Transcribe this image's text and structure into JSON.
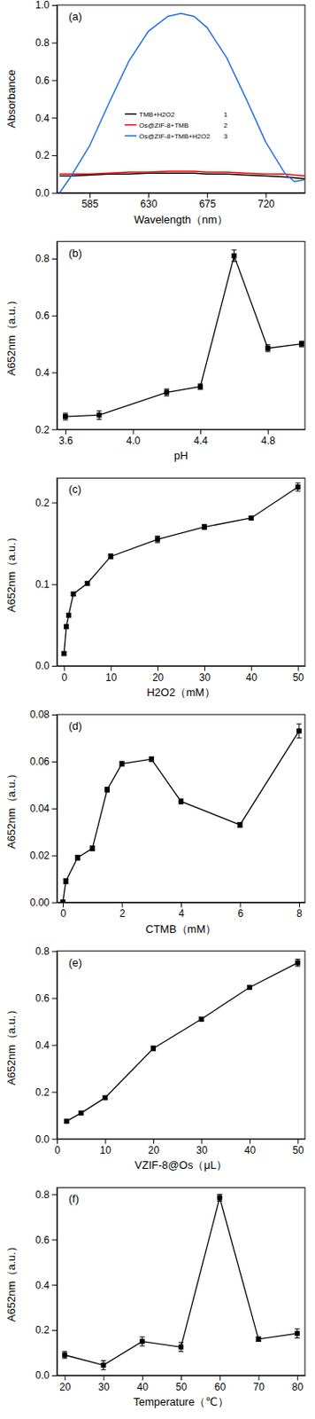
{
  "chart_data": [
    {
      "type": "line",
      "title": "(a)",
      "x_label": "Wavelength（nm）",
      "y_label": "Absorbance",
      "x": [
        562,
        570,
        585,
        600,
        615,
        630,
        645,
        655,
        665,
        675,
        690,
        705,
        720,
        735,
        742,
        750
      ],
      "series": [
        {
          "name": "TMB+H2O2",
          "color": "#000000",
          "values": [
            0.09,
            0.09,
            0.095,
            0.1,
            0.1,
            0.105,
            0.105,
            0.105,
            0.105,
            0.1,
            0.1,
            0.095,
            0.09,
            0.085,
            0.08,
            0.075
          ]
        },
        {
          "name": "Os@ZIF-8+TMB",
          "color": "#ff0000",
          "values": [
            0.1,
            0.1,
            0.1,
            0.105,
            0.11,
            0.11,
            0.115,
            0.115,
            0.115,
            0.11,
            0.11,
            0.105,
            0.1,
            0.1,
            0.095,
            0.09
          ]
        },
        {
          "name": "Os@ZIF-8+TMB+H2O2",
          "color": "#1f6fe0",
          "values": [
            0.0,
            0.08,
            0.25,
            0.48,
            0.7,
            0.86,
            0.94,
            0.955,
            0.94,
            0.88,
            0.72,
            0.5,
            0.27,
            0.1,
            0.06,
            0.07
          ]
        }
      ],
      "annotations": [
        "1",
        "2",
        "3"
      ],
      "legend": "center",
      "xlim": [
        560,
        750
      ],
      "xticks": [
        585,
        630,
        675,
        720
      ],
      "ylim": [
        0,
        1.0
      ],
      "yticks": [
        {
          "value": 0,
          "label": "0.0"
        },
        0.2,
        0.4,
        0.6,
        0.8,
        {
          "value": 1.0,
          "label": "1.0"
        }
      ]
    },
    {
      "type": "line",
      "title": "(b)",
      "x_label": "pH",
      "y_label": "A652nm（a.u.）",
      "color": "#000000",
      "marker": "square",
      "x": [
        3.6,
        3.8,
        4.2,
        4.4,
        4.6,
        4.8,
        5.0
      ],
      "values": [
        0.245,
        0.25,
        0.33,
        0.35,
        0.81,
        0.485,
        0.5
      ],
      "errors": [
        0.012,
        0.015,
        0.012,
        0.01,
        0.02,
        0.012,
        0.01
      ],
      "xlim": [
        3.55,
        5.02
      ],
      "xticks": [
        3.6,
        {
          "value": 4.0,
          "label": "4.0"
        },
        4.4,
        4.8
      ],
      "ylim": [
        0.2,
        0.86
      ],
      "yticks": [
        0.2,
        0.4,
        0.6,
        0.8
      ]
    },
    {
      "type": "line",
      "title": "(c)",
      "x_label": "H2O2（mM）",
      "y_label": "A652nm（a.u.）",
      "color": "#000000",
      "marker": "square",
      "x": [
        0,
        0.5,
        1,
        2,
        5,
        10,
        20,
        30,
        40,
        50
      ],
      "values": [
        0.015,
        0.048,
        0.062,
        0.088,
        0.101,
        0.134,
        0.155,
        0.17,
        0.181,
        0.219
      ],
      "errors": [
        0.002,
        0.002,
        0.002,
        0.002,
        0.002,
        0.003,
        0.004,
        0.003,
        0.002,
        0.005
      ],
      "xlim": [
        -1.5,
        51.5
      ],
      "xticks": [
        0,
        10,
        20,
        30,
        40,
        50
      ],
      "ylim": [
        0,
        0.23
      ],
      "yticks": [
        {
          "value": 0,
          "label": "0.0"
        },
        0.1,
        0.2
      ]
    },
    {
      "type": "line",
      "title": "(d)",
      "x_label": "CTMB（mM）",
      "y_label": "A652nm（a.u.）",
      "color": "#000000",
      "marker": "square",
      "x": [
        0,
        0.1,
        0.5,
        1,
        1.5,
        2,
        3,
        4,
        6,
        8
      ],
      "values": [
        0.0,
        0.009,
        0.019,
        0.023,
        0.048,
        0.059,
        0.061,
        0.043,
        0.033,
        0.073
      ],
      "errors": [
        0.001,
        0.001,
        0.001,
        0.001,
        0.001,
        0.001,
        0.001,
        0.001,
        0.001,
        0.003
      ],
      "xlim": [
        -0.2,
        8.2
      ],
      "xticks": [
        0,
        2,
        4,
        6,
        8
      ],
      "ylim": [
        0,
        0.08
      ],
      "yticks": [
        {
          "value": 0,
          "label": "0.00"
        },
        {
          "value": 0.02,
          "label": "0.02"
        },
        {
          "value": 0.04,
          "label": "0.04"
        },
        {
          "value": 0.06,
          "label": "0.06"
        },
        {
          "value": 0.08,
          "label": "0.08"
        }
      ]
    },
    {
      "type": "line",
      "title": "(e)",
      "x_label": "VZIF-8@Os（μL）",
      "y_label": "A652nm（a.u.）",
      "color": "#000000",
      "marker": "square",
      "x": [
        2,
        5,
        10,
        20,
        30,
        40,
        50
      ],
      "values": [
        0.075,
        0.11,
        0.175,
        0.385,
        0.51,
        0.645,
        0.75
      ],
      "errors": [
        0.005,
        0.006,
        0.006,
        0.01,
        0.008,
        0.008,
        0.015
      ],
      "xlim": [
        0,
        51.5
      ],
      "xticks": [
        0,
        10,
        20,
        30,
        40,
        50
      ],
      "ylim": [
        0,
        0.8
      ],
      "yticks": [
        {
          "value": 0,
          "label": "0.0"
        },
        0.2,
        0.4,
        0.6,
        0.8
      ]
    },
    {
      "type": "line",
      "title": "(f)",
      "x_label": "Temperature（℃）",
      "y_label": "A652nm（a.u.）",
      "color": "#000000",
      "marker": "square",
      "x": [
        20,
        30,
        40,
        50,
        60,
        70,
        80
      ],
      "values": [
        0.09,
        0.045,
        0.15,
        0.125,
        0.785,
        0.16,
        0.185
      ],
      "errors": [
        0.015,
        0.02,
        0.02,
        0.02,
        0.015,
        0.01,
        0.02
      ],
      "xlim": [
        18,
        82
      ],
      "xticks": [
        20,
        30,
        40,
        50,
        60,
        70,
        80
      ],
      "ylim": [
        0,
        0.83
      ],
      "yticks": [
        {
          "value": 0,
          "label": "0.0"
        },
        0.2,
        0.4,
        0.6,
        0.8
      ]
    }
  ]
}
